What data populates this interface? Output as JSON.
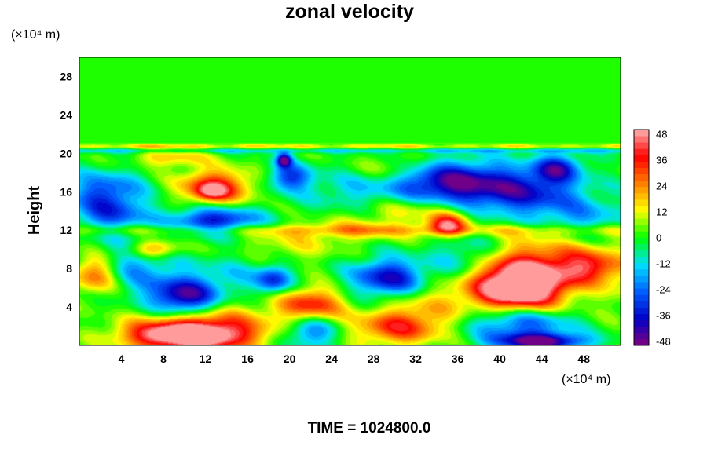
{
  "chart_data": {
    "type": "heatmap",
    "title": "zonal velocity",
    "xlabel": "",
    "ylabel": "Height",
    "x_unit_label": "(×10⁴ m)",
    "y_unit_label": "(×10⁴ m)",
    "xlim": [
      0,
      51.5
    ],
    "ylim": [
      0,
      30
    ],
    "x_ticks": [
      4,
      8,
      12,
      16,
      20,
      24,
      28,
      32,
      36,
      40,
      44,
      48
    ],
    "y_ticks": [
      4,
      8,
      12,
      16,
      20,
      24,
      28
    ],
    "colorbar": {
      "min": -50,
      "max": 50,
      "ticks": [
        48,
        36,
        24,
        12,
        0,
        -12,
        -24,
        -36,
        -48
      ],
      "palette": [
        "#800080",
        "#0000c8",
        "#0060ff",
        "#00e0ff",
        "#00ff00",
        "#ffff00",
        "#ff8000",
        "#ff0000",
        "#ffb0b0"
      ],
      "levels": 34
    },
    "background_value": 0,
    "features": [
      {
        "x": 10,
        "y": 1.0,
        "sx": 4.0,
        "sy": 1.0,
        "value": 50
      },
      {
        "x": 12,
        "y": 2.0,
        "sx": 4.5,
        "sy": 1.8,
        "value": 30
      },
      {
        "x": 10,
        "y": 5.0,
        "sx": 2.4,
        "sy": 1.4,
        "value": -48
      },
      {
        "x": 1.5,
        "y": 7.5,
        "sx": 1.6,
        "sy": 1.5,
        "value": 33
      },
      {
        "x": 5,
        "y": 8.5,
        "sx": 3.0,
        "sy": 2.0,
        "value": -20
      },
      {
        "x": 15,
        "y": 7.5,
        "sx": 3.0,
        "sy": 1.5,
        "value": -10
      },
      {
        "x": 22,
        "y": 4.2,
        "sx": 2.2,
        "sy": 1.3,
        "value": 36
      },
      {
        "x": 22,
        "y": 1.5,
        "sx": 1.8,
        "sy": 1.2,
        "value": -28
      },
      {
        "x": 29.5,
        "y": 7.0,
        "sx": 2.5,
        "sy": 1.4,
        "value": -40
      },
      {
        "x": 30,
        "y": 1.8,
        "sx": 3.0,
        "sy": 1.3,
        "value": 30
      },
      {
        "x": 33,
        "y": 4.0,
        "sx": 3.0,
        "sy": 2.0,
        "value": 14
      },
      {
        "x": 41.5,
        "y": 6.0,
        "sx": 3.0,
        "sy": 2.0,
        "value": 55
      },
      {
        "x": 45,
        "y": 7.5,
        "sx": 5.5,
        "sy": 2.8,
        "value": 30
      },
      {
        "x": 48.5,
        "y": 8.0,
        "sx": 2.0,
        "sy": 1.2,
        "value": 22
      },
      {
        "x": 42,
        "y": 2.5,
        "sx": 3.5,
        "sy": 1.4,
        "value": -38
      },
      {
        "x": 44,
        "y": 0.4,
        "sx": 3.0,
        "sy": 0.6,
        "value": -46
      },
      {
        "x": 37,
        "y": 9.0,
        "sx": 2.5,
        "sy": 1.8,
        "value": -20
      },
      {
        "x": 20,
        "y": 10.5,
        "sx": 3.5,
        "sy": 1.5,
        "value": 12
      },
      {
        "x": 7,
        "y": 10.0,
        "sx": 1.8,
        "sy": 0.7,
        "value": 30
      },
      {
        "x": 13,
        "y": 13.0,
        "sx": 3.0,
        "sy": 1.0,
        "value": -38
      },
      {
        "x": 3,
        "y": 13.5,
        "sx": 2.5,
        "sy": 1.2,
        "value": -22
      },
      {
        "x": 13,
        "y": 16.5,
        "sx": 2.5,
        "sy": 1.3,
        "value": 38
      },
      {
        "x": 12.5,
        "y": 16.0,
        "sx": 1.0,
        "sy": 0.6,
        "value": 20
      },
      {
        "x": 2.5,
        "y": 16.0,
        "sx": 2.5,
        "sy": 1.5,
        "value": -28
      },
      {
        "x": 20,
        "y": 17.5,
        "sx": 1.5,
        "sy": 1.0,
        "value": -30
      },
      {
        "x": 19.5,
        "y": 19.3,
        "sx": 0.5,
        "sy": 0.5,
        "value": -45
      },
      {
        "x": 35,
        "y": 17.0,
        "sx": 3.5,
        "sy": 1.5,
        "value": -40
      },
      {
        "x": 42,
        "y": 16.0,
        "sx": 4.0,
        "sy": 1.8,
        "value": -36
      },
      {
        "x": 45.5,
        "y": 18.5,
        "sx": 1.5,
        "sy": 1.0,
        "value": -32
      },
      {
        "x": 35,
        "y": 12.5,
        "sx": 1.3,
        "sy": 0.8,
        "value": 40
      },
      {
        "x": 32,
        "y": 14.0,
        "sx": 4.0,
        "sy": 1.0,
        "value": 14
      },
      {
        "x": 27,
        "y": 12.0,
        "sx": 3.0,
        "sy": 0.9,
        "value": 12
      },
      {
        "x": 48,
        "y": 13.0,
        "sx": 3.0,
        "sy": 1.5,
        "value": -18
      },
      {
        "x": 26,
        "y": 16.0,
        "sx": 3.5,
        "sy": 1.5,
        "value": -12
      },
      {
        "x": 30,
        "y": 18.5,
        "sx": 2.5,
        "sy": 1.0,
        "value": 12
      },
      {
        "x": 8.5,
        "y": 19.5,
        "sx": 2.5,
        "sy": 0.7,
        "value": 18
      },
      {
        "x": 48,
        "y": 6.0,
        "sx": 2.0,
        "sy": 1.5,
        "value": -14
      },
      {
        "x": 18.5,
        "y": 6.8,
        "sx": 1.2,
        "sy": 1.0,
        "value": -30
      }
    ],
    "bands": [
      {
        "y": 12.0,
        "sy": 0.45,
        "value": 12,
        "xmin": 0,
        "xmax": 51.5
      },
      {
        "y": 20.7,
        "sy": 0.2,
        "value": 14,
        "xmin": 0,
        "xmax": 51.5
      },
      {
        "y": 20.3,
        "sy": 0.2,
        "value": -12,
        "xmin": 0,
        "xmax": 51.5
      }
    ],
    "upper_region": {
      "y_from": 21,
      "value": 0
    }
  },
  "footer": {
    "time_label": "TIME = 1024800.0"
  }
}
